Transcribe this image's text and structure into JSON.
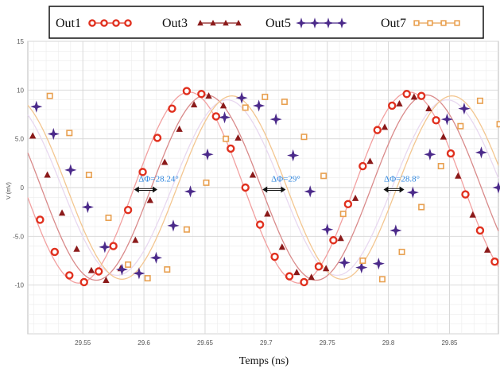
{
  "chart_data": {
    "type": "line",
    "xlabel": "Temps (ns)",
    "ylabel": "V (mV)",
    "xlim": [
      29.505,
      29.89
    ],
    "ylim": [
      -15,
      15
    ],
    "x_ticks": [
      29.55,
      29.6,
      29.65,
      29.7,
      29.75,
      29.8,
      29.85
    ],
    "x_tick_labels": [
      "29.55",
      "29.6",
      "29.65",
      "29.7",
      "29.75",
      "29.8",
      "29.85"
    ],
    "y_ticks": [
      15,
      10,
      5,
      0,
      -5,
      -10
    ],
    "y_tick_labels": [
      "15",
      "10",
      "5.0",
      "0",
      "-5.0",
      "-10"
    ],
    "grid": true,
    "legend_position": "top",
    "series": [
      {
        "name": "Out1",
        "color": "#e0301e",
        "line_color": "#f2a0a0",
        "marker": "circle",
        "amplitude": 9.8,
        "period": 0.18,
        "peak_x": 29.637,
        "x": [
          29.515,
          29.527,
          29.539,
          29.551,
          29.563,
          29.575,
          29.587,
          29.599,
          29.611,
          29.623,
          29.635,
          29.647,
          29.659,
          29.671,
          29.683,
          29.695,
          29.707,
          29.719,
          29.731,
          29.743,
          29.755,
          29.767,
          29.779,
          29.791,
          29.803,
          29.815,
          29.827,
          29.839,
          29.851,
          29.863,
          29.875,
          29.887
        ],
        "y": [
          -3.3,
          -6.6,
          -9.0,
          -9.7,
          -8.6,
          -6.0,
          -2.3,
          1.6,
          5.1,
          8.1,
          9.9,
          9.6,
          7.3,
          4.0,
          -0.0,
          -3.8,
          -7.1,
          -9.1,
          -9.7,
          -8.1,
          -5.4,
          -1.7,
          2.2,
          5.9,
          8.4,
          9.6,
          9.4,
          6.9,
          3.5,
          -0.7,
          -4.4,
          -7.6
        ]
      },
      {
        "name": "Out3",
        "color": "#8b1a1a",
        "line_color": "#d98a8a",
        "marker": "triangle",
        "amplitude": 9.5,
        "period": 0.18,
        "peak_x": 29.651,
        "x": [
          29.509,
          29.521,
          29.533,
          29.545,
          29.557,
          29.569,
          29.581,
          29.593,
          29.605,
          29.617,
          29.629,
          29.641,
          29.653,
          29.665,
          29.677,
          29.689,
          29.701,
          29.713,
          29.725,
          29.737,
          29.749,
          29.761,
          29.773,
          29.785,
          29.797,
          29.809,
          29.821,
          29.833,
          29.845,
          29.857,
          29.869,
          29.881
        ],
        "y": [
          5.3,
          1.3,
          -2.6,
          -6.3,
          -8.5,
          -9.5,
          -8.3,
          -5.4,
          -1.3,
          2.6,
          6.0,
          8.5,
          9.4,
          8.4,
          5.1,
          1.3,
          -2.7,
          -6.1,
          -8.7,
          -9.2,
          -8.3,
          -5.2,
          -1.1,
          2.7,
          6.2,
          8.6,
          9.3,
          8.1,
          5.2,
          1.2,
          -2.8,
          -6.4
        ]
      },
      {
        "name": "Out5",
        "color": "#4b2a8a",
        "line_color": "#e8d8f0",
        "marker": "star",
        "amplitude": 9.0,
        "period": 0.18,
        "peak_x": 29.668,
        "x": [
          29.512,
          29.526,
          29.54,
          29.554,
          29.568,
          29.582,
          29.596,
          29.61,
          29.624,
          29.638,
          29.652,
          29.666,
          29.68,
          29.694,
          29.708,
          29.722,
          29.736,
          29.75,
          29.764,
          29.778,
          29.792,
          29.806,
          29.82,
          29.834,
          29.848,
          29.862,
          29.876,
          29.89
        ],
        "y": [
          8.3,
          5.5,
          1.8,
          -2.0,
          -6.1,
          -8.4,
          -8.8,
          -7.2,
          -3.9,
          -0.4,
          3.4,
          7.2,
          9.2,
          8.4,
          7.0,
          3.3,
          -0.4,
          -4.3,
          -7.7,
          -8.2,
          -7.8,
          -4.4,
          -0.5,
          3.4,
          7.0,
          8.1,
          3.6,
          0.0
        ]
      },
      {
        "name": "Out7",
        "color": "#e8a050",
        "line_color": "#f3c690",
        "marker": "square",
        "amplitude": 9.4,
        "period": 0.18,
        "peak_x": 29.672,
        "x": [
          29.523,
          29.539,
          29.555,
          29.571,
          29.587,
          29.603,
          29.619,
          29.635,
          29.651,
          29.667,
          29.683,
          29.699,
          29.715,
          29.731,
          29.747,
          29.763,
          29.779,
          29.795,
          29.811,
          29.827,
          29.843,
          29.859,
          29.875,
          29.891
        ],
        "y": [
          9.4,
          5.6,
          1.3,
          -3.1,
          -7.9,
          -9.3,
          -8.4,
          -4.3,
          0.5,
          5.0,
          8.2,
          9.3,
          8.8,
          5.2,
          1.2,
          -2.7,
          -7.5,
          -9.4,
          -6.6,
          -2.0,
          2.2,
          6.3,
          8.9,
          6.5
        ]
      }
    ],
    "annotations": [
      {
        "text": "ΔΦ=28.24°",
        "x": 29.612,
        "y": 0.3,
        "arrow_from": 29.592,
        "arrow_to": 29.611,
        "arrow_y": -0.2
      },
      {
        "text": "ΔΦ=29°",
        "x": 29.716,
        "y": 0.3,
        "arrow_from": 29.697,
        "arrow_to": 29.716,
        "arrow_y": -0.2
      },
      {
        "text": "ΔΦ=28.8°",
        "x": 29.811,
        "y": 0.3,
        "arrow_from": 29.796,
        "arrow_to": 29.813,
        "arrow_y": -0.2
      }
    ]
  }
}
